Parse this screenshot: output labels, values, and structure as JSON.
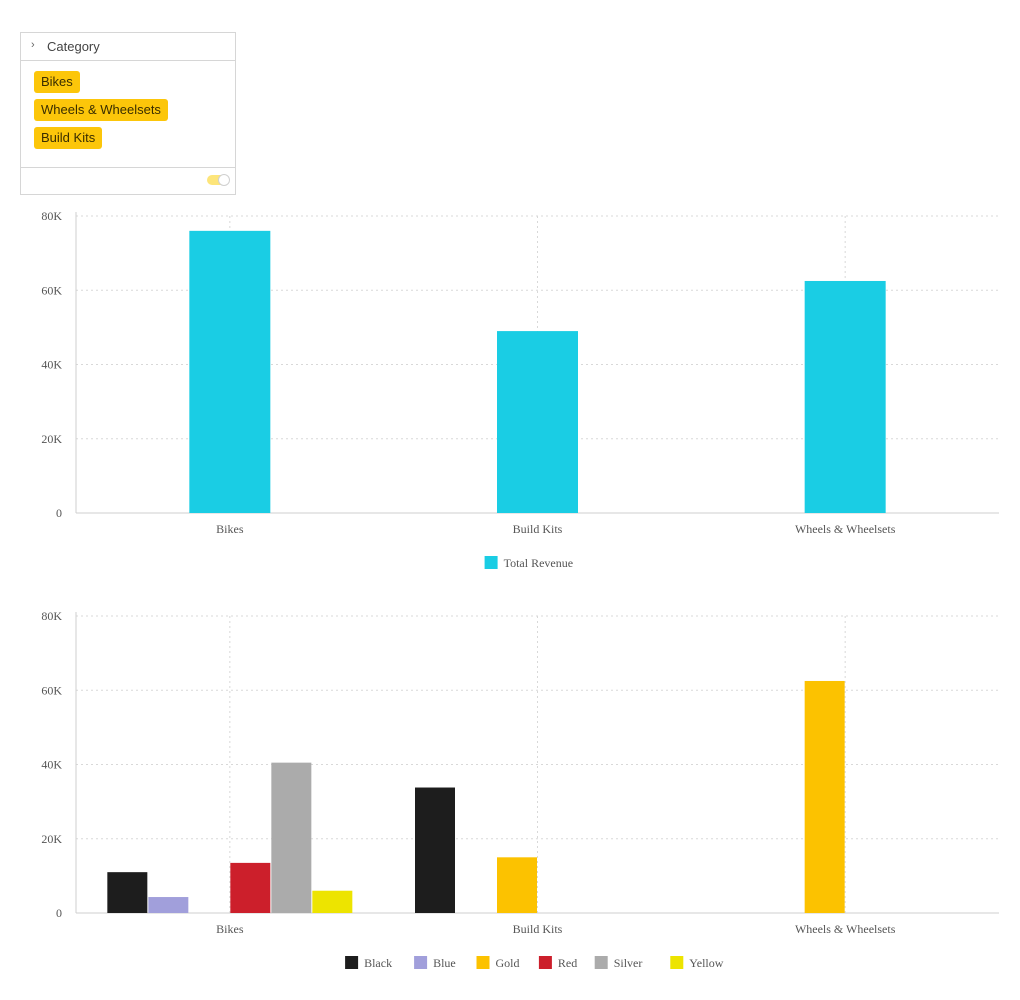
{
  "filter": {
    "header_label": "Category",
    "chips": [
      "Bikes",
      "Wheels & Wheelsets",
      "Build Kits"
    ],
    "toggle_on": true,
    "chip_color": "#fcc60a"
  },
  "chart_data": [
    {
      "type": "bar",
      "categories": [
        "Bikes",
        "Build Kits",
        "Wheels & Wheelsets"
      ],
      "series": [
        {
          "name": "Total Revenue",
          "color": "#1acde4",
          "values": [
            76000,
            49000,
            62500
          ]
        }
      ],
      "ylim": [
        0,
        80000
      ],
      "yticks": [
        0,
        20000,
        40000,
        60000,
        80000
      ],
      "ytick_labels": [
        "0",
        "20K",
        "40K",
        "60K",
        "80K"
      ],
      "grid": true,
      "legend": "bottom"
    },
    {
      "type": "bar",
      "categories": [
        "Bikes",
        "Build Kits",
        "Wheels & Wheelsets"
      ],
      "series": [
        {
          "name": "Black",
          "color": "#1d1d1d",
          "values": [
            11000,
            33800,
            null
          ]
        },
        {
          "name": "Blue",
          "color": "#a19fdb",
          "values": [
            4300,
            null,
            null
          ]
        },
        {
          "name": "Gold",
          "color": "#fcc200",
          "values": [
            null,
            15000,
            62500
          ]
        },
        {
          "name": "Red",
          "color": "#cc1f2b",
          "values": [
            13500,
            null,
            null
          ]
        },
        {
          "name": "Silver",
          "color": "#ababab",
          "values": [
            40500,
            null,
            null
          ]
        },
        {
          "name": "Yellow",
          "color": "#ede400",
          "values": [
            6000,
            null,
            null
          ]
        }
      ],
      "ylim": [
        0,
        80000
      ],
      "yticks": [
        0,
        20000,
        40000,
        60000,
        80000
      ],
      "ytick_labels": [
        "0",
        "20K",
        "40K",
        "60K",
        "80K"
      ],
      "grid": true,
      "legend": "bottom"
    }
  ]
}
